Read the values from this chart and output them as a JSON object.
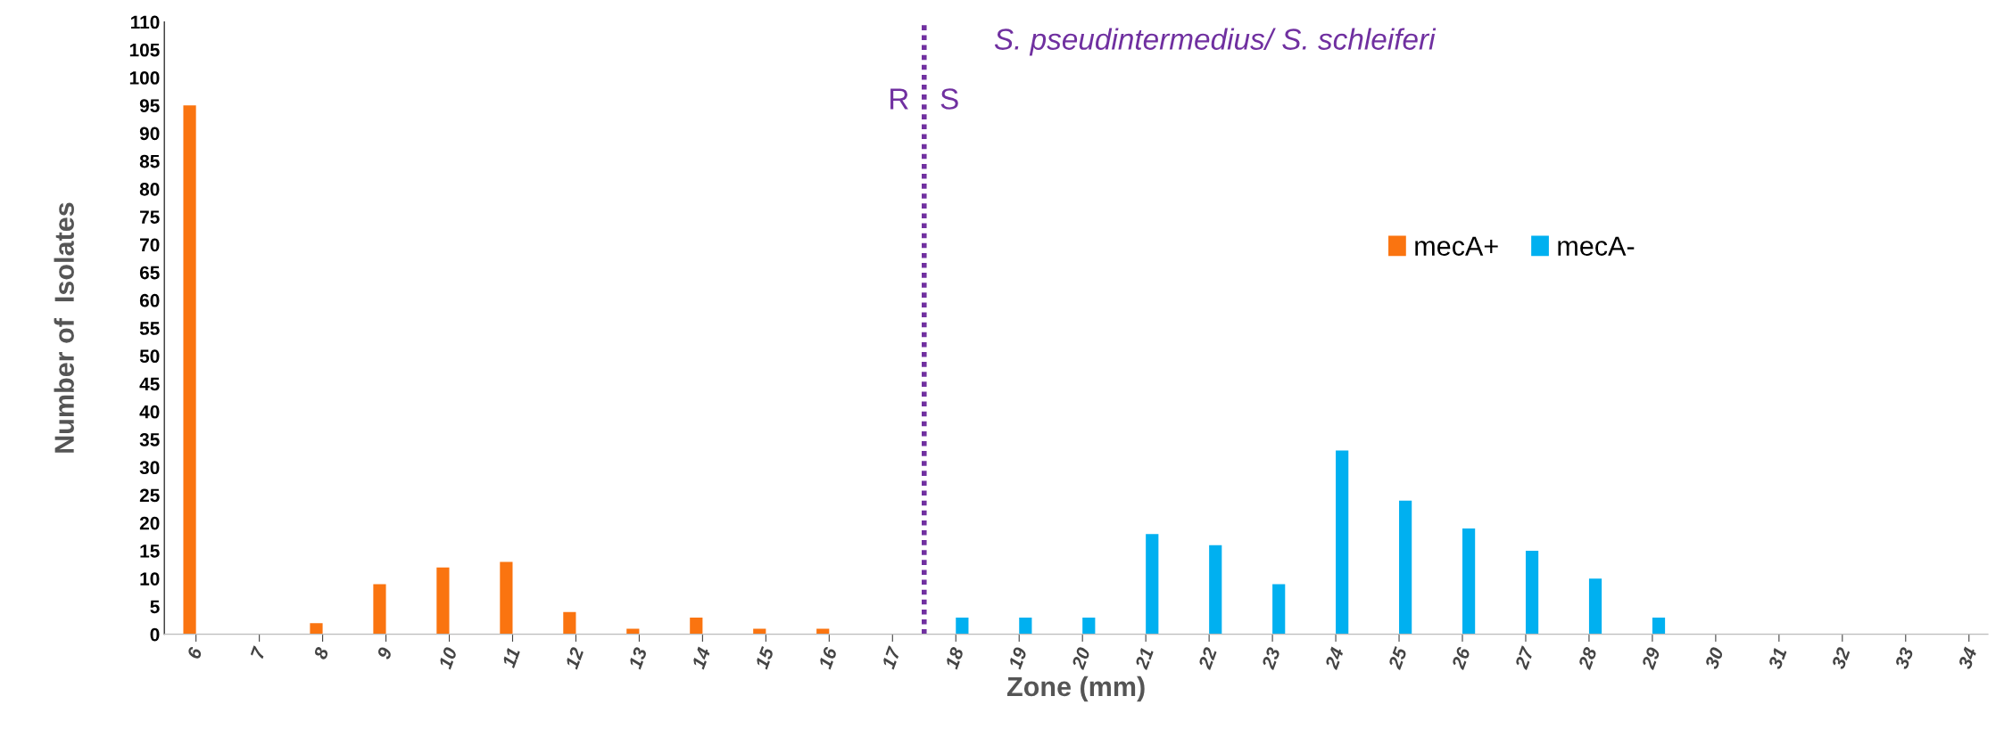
{
  "chart_data": {
    "type": "bar",
    "xlabel": "Zone (mm)",
    "ylabel": "Number of  Isolates",
    "x": [
      6,
      7,
      8,
      9,
      10,
      11,
      12,
      13,
      14,
      15,
      16,
      17,
      18,
      19,
      20,
      21,
      22,
      23,
      24,
      25,
      26,
      27,
      28,
      29,
      30,
      31,
      32,
      33,
      34
    ],
    "series": [
      {
        "name": "mecA+",
        "color": "#fa7410",
        "values": [
          95,
          0,
          2,
          9,
          12,
          13,
          4,
          1,
          3,
          1,
          1,
          0,
          0,
          0,
          0,
          0,
          0,
          0,
          0,
          0,
          0,
          0,
          0,
          0,
          0,
          0,
          0,
          0,
          0
        ]
      },
      {
        "name": "mecA-",
        "color": "#00b0f0",
        "values": [
          0,
          0,
          0,
          0,
          0,
          0,
          0,
          0,
          0,
          0,
          0,
          0,
          3,
          3,
          3,
          18,
          16,
          9,
          33,
          24,
          19,
          15,
          10,
          3,
          0,
          0,
          0,
          0,
          0
        ]
      }
    ],
    "xlim": [
      5.5,
      34.3
    ],
    "xticks": [
      6,
      7,
      8,
      9,
      10,
      11,
      12,
      13,
      14,
      15,
      16,
      17,
      18,
      19,
      20,
      21,
      22,
      23,
      24,
      25,
      26,
      27,
      28,
      29,
      30,
      31,
      32,
      33,
      34
    ],
    "ylim": [
      0,
      110
    ],
    "yticks": [
      0,
      5,
      10,
      15,
      20,
      25,
      30,
      35,
      40,
      45,
      50,
      55,
      60,
      65,
      70,
      75,
      80,
      85,
      90,
      95,
      100,
      105,
      110
    ],
    "ref_lines": [
      {
        "axis": "x",
        "value": 17.5,
        "label": "S. pseudintermedius/ S. schleiferi",
        "color": "#7030a0",
        "line_style": "dotted"
      }
    ],
    "annotations": [
      "R",
      "S"
    ],
    "grid": false,
    "legend": "right"
  }
}
